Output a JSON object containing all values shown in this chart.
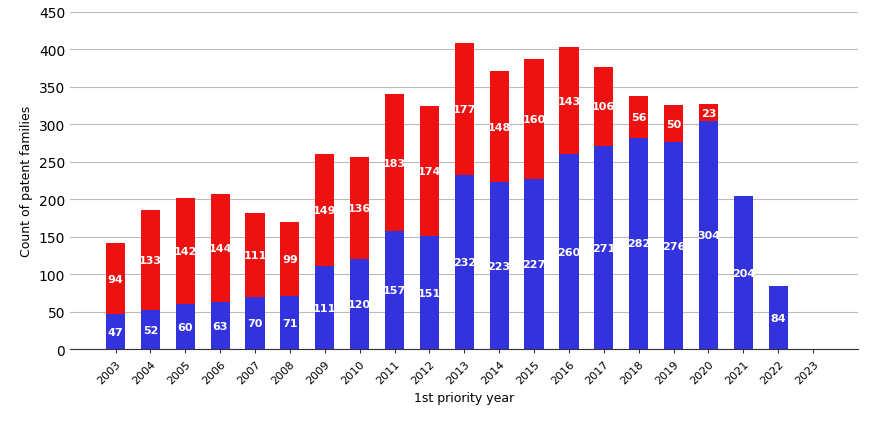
{
  "years": [
    2003,
    2004,
    2005,
    2006,
    2007,
    2008,
    2009,
    2010,
    2011,
    2012,
    2013,
    2014,
    2015,
    2016,
    2017,
    2018,
    2019,
    2020,
    2021,
    2022,
    2023
  ],
  "blue_values": [
    47,
    52,
    60,
    63,
    70,
    71,
    111,
    120,
    157,
    151,
    232,
    223,
    227,
    260,
    271,
    282,
    276,
    304,
    204,
    84,
    0
  ],
  "red_values": [
    94,
    133,
    142,
    144,
    111,
    99,
    149,
    136,
    183,
    174,
    177,
    148,
    160,
    143,
    106,
    56,
    50,
    23,
    0,
    0,
    0
  ],
  "blue_color": "#3333dd",
  "red_color": "#ee1111",
  "ylabel": "Count of patent families",
  "xlabel": "1st priority year",
  "ylim": [
    0,
    450
  ],
  "yticks": [
    0,
    50,
    100,
    150,
    200,
    250,
    300,
    350,
    400,
    450
  ],
  "background_color": "#ffffff",
  "grid_color": "#bbbbbb",
  "label_fontsize": 8,
  "axis_label_fontsize": 9,
  "bar_width": 0.55
}
